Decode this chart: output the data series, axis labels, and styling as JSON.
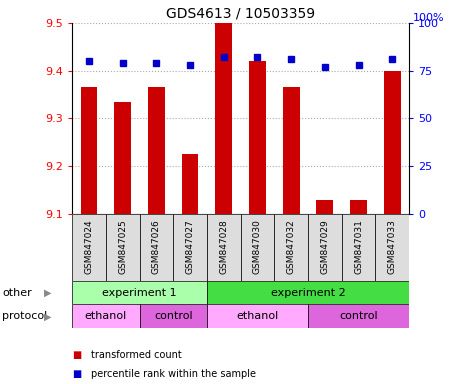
{
  "title": "GDS4613 / 10503359",
  "samples": [
    "GSM847024",
    "GSM847025",
    "GSM847026",
    "GSM847027",
    "GSM847028",
    "GSM847030",
    "GSM847032",
    "GSM847029",
    "GSM847031",
    "GSM847033"
  ],
  "transformed_count": [
    9.365,
    9.335,
    9.365,
    9.225,
    9.5,
    9.42,
    9.365,
    9.13,
    9.13,
    9.4
  ],
  "percentile_rank": [
    80,
    79,
    79,
    78,
    82,
    82,
    81,
    77,
    78,
    81
  ],
  "ylim_left": [
    9.1,
    9.5
  ],
  "ylim_right": [
    0,
    100
  ],
  "yticks_left": [
    9.1,
    9.2,
    9.3,
    9.4,
    9.5
  ],
  "yticks_right": [
    0,
    25,
    50,
    75,
    100
  ],
  "bar_color": "#cc0000",
  "dot_color": "#0000cc",
  "grid_color": "#aaaaaa",
  "experiment_groups": [
    {
      "label": "experiment 1",
      "start": 0,
      "end": 4,
      "color": "#aaffaa"
    },
    {
      "label": "experiment 2",
      "start": 4,
      "end": 10,
      "color": "#44dd44"
    }
  ],
  "protocol_groups": [
    {
      "label": "ethanol",
      "start": 0,
      "end": 2,
      "color": "#ffaaff"
    },
    {
      "label": "control",
      "start": 2,
      "end": 4,
      "color": "#dd66dd"
    },
    {
      "label": "ethanol",
      "start": 4,
      "end": 7,
      "color": "#ffaaff"
    },
    {
      "label": "control",
      "start": 7,
      "end": 10,
      "color": "#dd66dd"
    }
  ],
  "other_label": "other",
  "protocol_label": "protocol",
  "legend_items": [
    {
      "label": "transformed count",
      "color": "#cc0000"
    },
    {
      "label": "percentile rank within the sample",
      "color": "#0000cc"
    }
  ],
  "bar_width": 0.5
}
